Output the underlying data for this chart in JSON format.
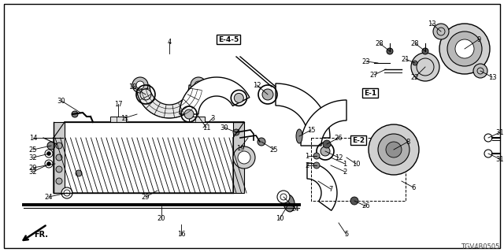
{
  "bg_color": "#ffffff",
  "fig_width": 6.4,
  "fig_height": 3.2,
  "dpi": 100,
  "diagram_code": "TGV4B0505",
  "fr_label": "FR."
}
